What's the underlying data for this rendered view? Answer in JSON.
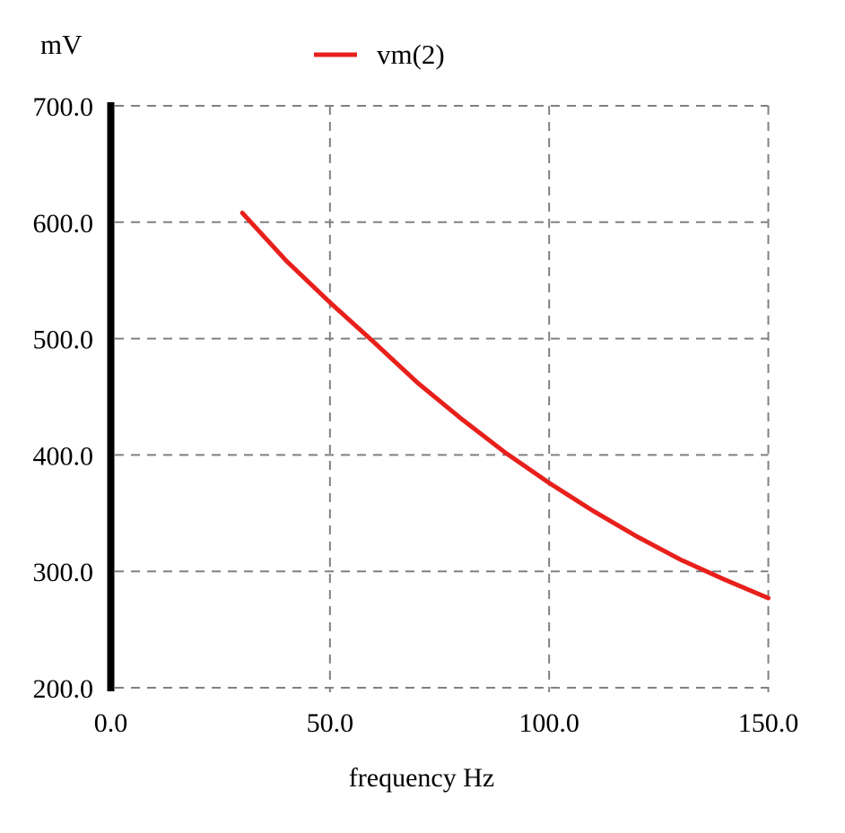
{
  "window": {
    "background": "#ffffff",
    "text_color": "#000000"
  },
  "chart_data": {
    "type": "line",
    "title": "",
    "unit_label": "mV",
    "xlabel": "frequency Hz",
    "ylabel": "mV",
    "legend": {
      "label": "vm(2)",
      "color": "#e8201c",
      "position": "top-center"
    },
    "grid": true,
    "grid_style": "dashed",
    "grid_color": "#808080",
    "axis_color": "#000000",
    "xlim": [
      0,
      150
    ],
    "ylim": [
      200,
      700
    ],
    "x_ticks": [
      0,
      50,
      100,
      150
    ],
    "x_tick_labels": [
      "0.0",
      "50.0",
      "100.0",
      "150.0"
    ],
    "y_ticks": [
      700,
      600,
      500,
      400,
      300,
      200
    ],
    "y_tick_labels": [
      "700.0",
      "600.0",
      "500.0",
      "400.0",
      "300.0",
      "200.0"
    ],
    "x": [
      30,
      40,
      50,
      60,
      70,
      80,
      90,
      100,
      110,
      120,
      130,
      140,
      150
    ],
    "series": [
      {
        "name": "vm(2)",
        "color": "#e8201c",
        "values": [
          608,
          567,
          531,
          497,
          462,
          431,
          402,
          376,
          352,
          330,
          310,
          293,
          277
        ]
      }
    ]
  }
}
